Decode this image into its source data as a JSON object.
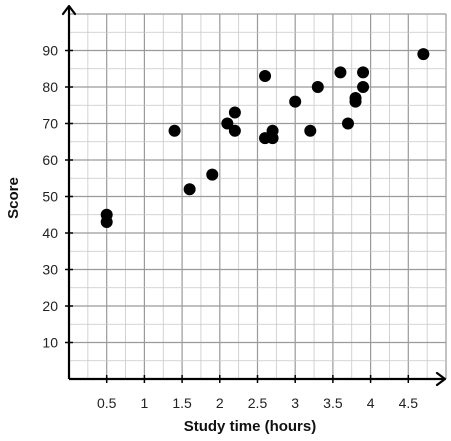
{
  "chart_data": {
    "type": "scatter",
    "title": "",
    "xlabel": "Study time (hours)",
    "ylabel": "Score",
    "xlim": [
      0,
      5
    ],
    "ylim": [
      0,
      100
    ],
    "x_minor_step": 0.25,
    "y_minor_step": 5,
    "xticks": [
      0.5,
      1,
      1.5,
      2,
      2.5,
      3,
      3.5,
      4,
      4.5
    ],
    "xtick_labels": [
      "0.5",
      "1",
      "1.5",
      "2",
      "2.5",
      "3",
      "3.5",
      "4",
      "4.5"
    ],
    "yticks": [
      10,
      20,
      30,
      40,
      50,
      60,
      70,
      80,
      90
    ],
    "ytick_labels": [
      "10",
      "20",
      "30",
      "40",
      "50",
      "60",
      "70",
      "80",
      "90"
    ],
    "grid": true,
    "point_color": "#000000",
    "grid_color": "#c8c8c8",
    "points": [
      {
        "x": 0.5,
        "y": 45
      },
      {
        "x": 0.5,
        "y": 43
      },
      {
        "x": 1.4,
        "y": 68
      },
      {
        "x": 1.6,
        "y": 52
      },
      {
        "x": 1.9,
        "y": 56
      },
      {
        "x": 2.1,
        "y": 70
      },
      {
        "x": 2.2,
        "y": 73
      },
      {
        "x": 2.2,
        "y": 68
      },
      {
        "x": 2.6,
        "y": 83
      },
      {
        "x": 2.6,
        "y": 66
      },
      {
        "x": 2.7,
        "y": 68
      },
      {
        "x": 2.7,
        "y": 66
      },
      {
        "x": 3.0,
        "y": 76
      },
      {
        "x": 3.2,
        "y": 68
      },
      {
        "x": 3.3,
        "y": 80
      },
      {
        "x": 3.6,
        "y": 84
      },
      {
        "x": 3.7,
        "y": 70
      },
      {
        "x": 3.8,
        "y": 77
      },
      {
        "x": 3.8,
        "y": 76
      },
      {
        "x": 3.9,
        "y": 84
      },
      {
        "x": 3.9,
        "y": 80
      },
      {
        "x": 4.7,
        "y": 89
      }
    ]
  }
}
